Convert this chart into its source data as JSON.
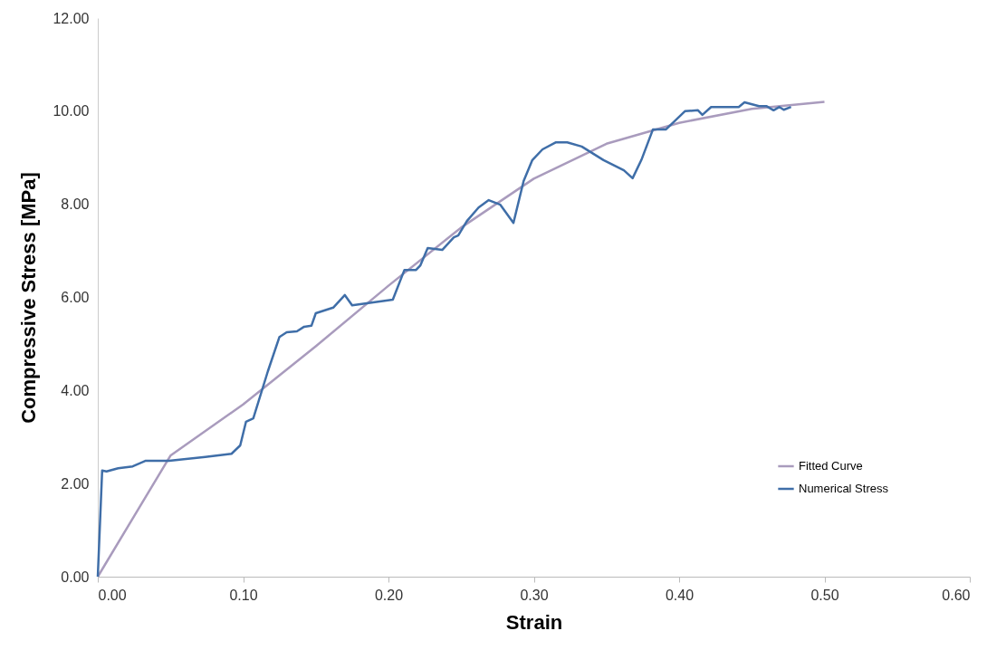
{
  "chart_data": {
    "type": "line",
    "xlabel": "Strain",
    "ylabel": "Compressive Stress [MPa]",
    "xlim": [
      0,
      0.6
    ],
    "ylim": [
      0,
      12
    ],
    "xticks": [
      {
        "value": 0,
        "label": "0.00"
      },
      {
        "value": 0.1,
        "label": "0.10"
      },
      {
        "value": 0.2,
        "label": "0.20"
      },
      {
        "value": 0.3,
        "label": "0.30"
      },
      {
        "value": 0.4,
        "label": "0.40"
      },
      {
        "value": 0.5,
        "label": "0.50"
      },
      {
        "value": 0.6,
        "label": "0.60"
      }
    ],
    "yticks": [
      {
        "value": 0,
        "label": "0.00"
      },
      {
        "value": 2,
        "label": "2.00"
      },
      {
        "value": 4,
        "label": "4.00"
      },
      {
        "value": 6,
        "label": "6.00"
      },
      {
        "value": 8,
        "label": "8.00"
      },
      {
        "value": 10,
        "label": "10.00"
      },
      {
        "value": 12,
        "label": "12.00"
      }
    ],
    "grid": false,
    "legend": "bottom right",
    "series": [
      {
        "name": "Fitted Curve",
        "color": "#a99bbd",
        "x": [
          0,
          0.025,
          0.05,
          0.1,
          0.15,
          0.2,
          0.25,
          0.3,
          0.35,
          0.4,
          0.45,
          0.5
        ],
        "values": [
          0,
          1.3,
          2.6,
          3.7,
          4.95,
          6.25,
          7.5,
          8.55,
          9.3,
          9.75,
          10.05,
          10.2
        ]
      },
      {
        "name": "Numerical Stress",
        "color": "#3f6ea8",
        "x": [
          0,
          0.003,
          0.006,
          0.014,
          0.024,
          0.033,
          0.049,
          0.074,
          0.092,
          0.098,
          0.102,
          0.107,
          0.117,
          0.125,
          0.13,
          0.137,
          0.142,
          0.147,
          0.15,
          0.162,
          0.17,
          0.175,
          0.203,
          0.211,
          0.219,
          0.222,
          0.227,
          0.237,
          0.245,
          0.248,
          0.254,
          0.262,
          0.269,
          0.277,
          0.286,
          0.293,
          0.299,
          0.306,
          0.315,
          0.323,
          0.333,
          0.348,
          0.362,
          0.368,
          0.374,
          0.382,
          0.391,
          0.404,
          0.413,
          0.416,
          0.422,
          0.441,
          0.445,
          0.455,
          0.46,
          0.465,
          0.469,
          0.472,
          0.477
        ],
        "values": [
          0,
          2.28,
          2.26,
          2.33,
          2.37,
          2.49,
          2.49,
          2.57,
          2.64,
          2.82,
          3.33,
          3.4,
          4.41,
          5.15,
          5.25,
          5.27,
          5.37,
          5.39,
          5.66,
          5.78,
          6.05,
          5.83,
          5.95,
          6.59,
          6.59,
          6.69,
          7.06,
          7.02,
          7.29,
          7.33,
          7.64,
          7.93,
          8.09,
          7.99,
          7.6,
          8.5,
          8.95,
          9.18,
          9.33,
          9.33,
          9.24,
          8.95,
          8.73,
          8.56,
          8.95,
          9.61,
          9.61,
          10.0,
          10.02,
          9.92,
          10.09,
          10.09,
          10.19,
          10.11,
          10.11,
          10.02,
          10.09,
          10.03,
          10.09
        ]
      }
    ]
  }
}
